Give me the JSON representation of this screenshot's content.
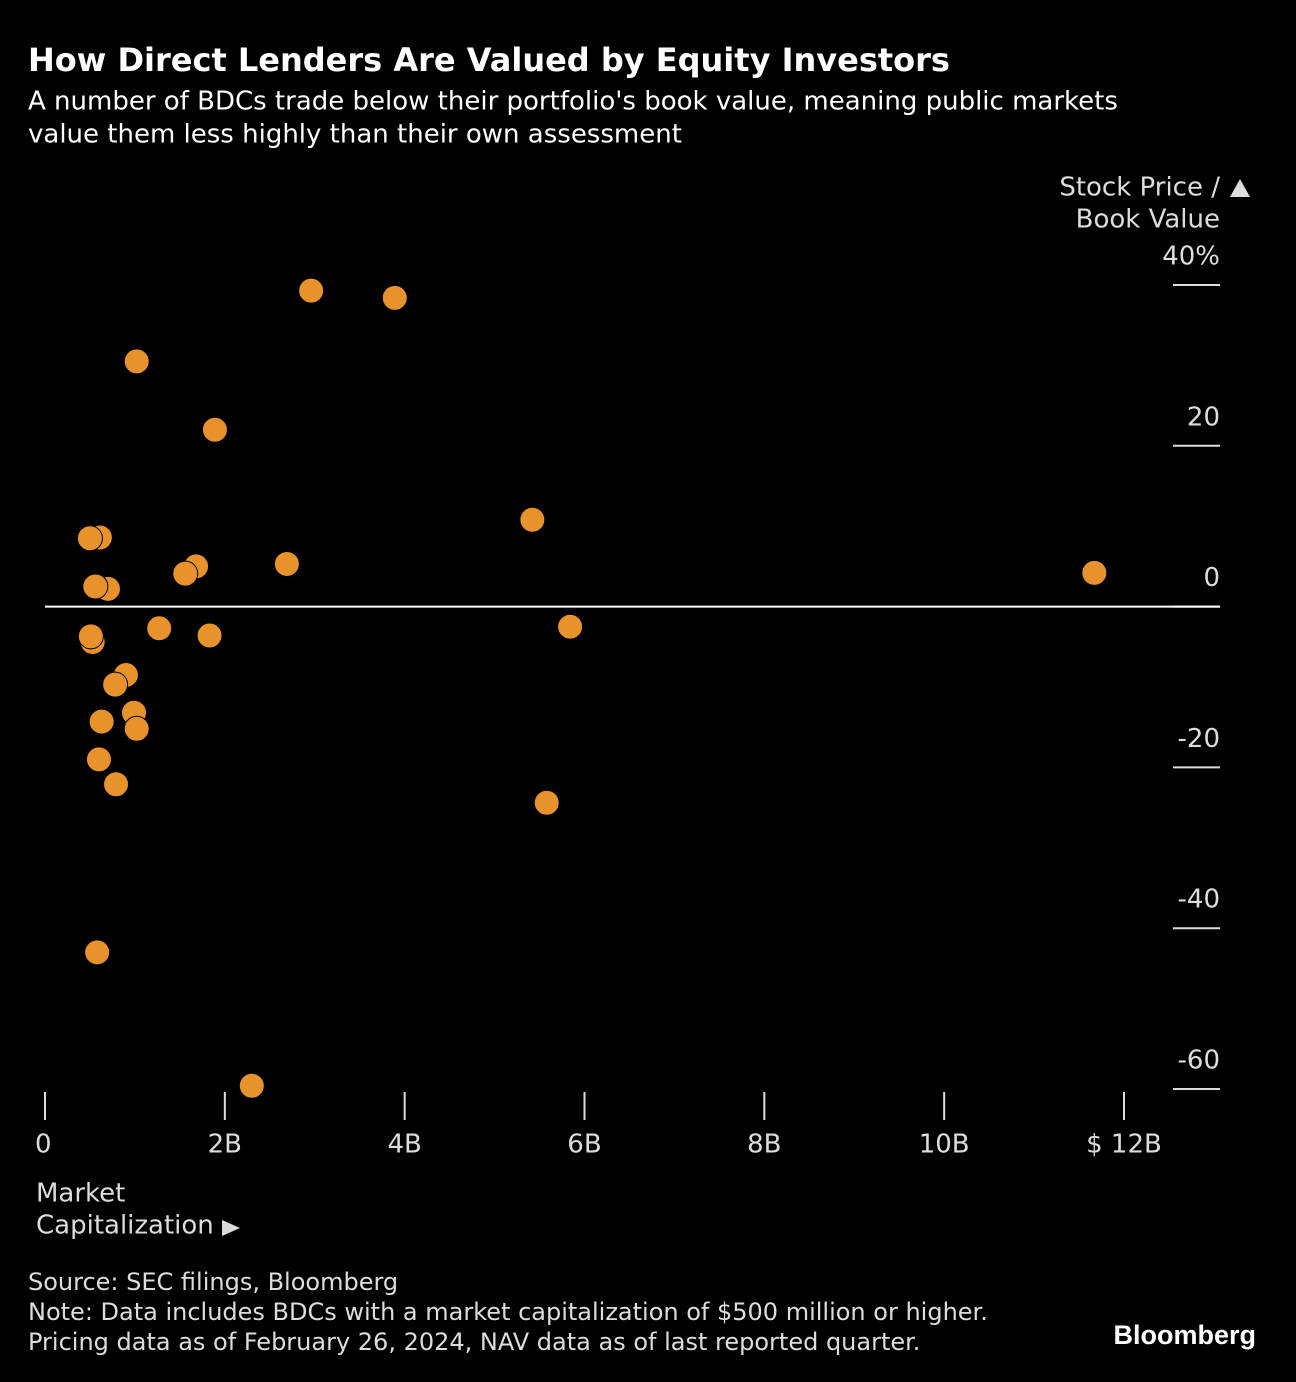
{
  "chart_data": {
    "type": "scatter",
    "title": "How Direct Lenders Are Valued by Equity Investors",
    "subtitle": [
      "A number of BDCs trade below their portfolio's book value, meaning public markets",
      "value them less highly than their own assessment"
    ],
    "y_label": [
      "Stock Price /",
      "Book Value"
    ],
    "x_label": [
      "Market",
      "Capitalization"
    ],
    "color": "#e8922c",
    "xlim": [
      0,
      12
    ],
    "xticks": [
      0,
      {
        "value": 2,
        "label": "2B"
      },
      {
        "value": 4,
        "label": "4B"
      },
      {
        "value": 6,
        "label": "6B"
      },
      {
        "value": 8,
        "label": "8B"
      },
      {
        "value": 10,
        "label": "10B"
      },
      {
        "value": 12,
        "label": "$ 12B"
      }
    ],
    "ylim": [
      -60,
      40
    ],
    "yticks": [
      {
        "value": 40,
        "label": "40%"
      },
      20,
      0,
      -20,
      -40,
      -60
    ],
    "x": [
      2.96,
      3.89,
      1.02,
      1.89,
      5.42,
      0.61,
      0.5,
      1.68,
      1.56,
      2.69,
      11.67,
      0.7,
      0.56,
      1.27,
      1.83,
      5.84,
      0.53,
      0.51,
      0.9,
      0.78,
      0.99,
      1.02,
      0.63,
      0.6,
      0.79,
      5.58,
      0.58,
      2.3
    ],
    "y": [
      39.3,
      38.4,
      30.5,
      22.0,
      10.8,
      8.6,
      8.5,
      5.0,
      4.1,
      5.3,
      4.2,
      2.2,
      2.5,
      -2.7,
      -3.6,
      -2.5,
      -4.4,
      -3.7,
      -8.5,
      -9.7,
      -13.2,
      -15.2,
      -14.3,
      -19.0,
      -22.1,
      -24.4,
      -43.0,
      -59.6
    ],
    "source": "Source: SEC filings, Bloomberg",
    "note": [
      "Note: Data includes BDCs with a market capitalization of $500 million or higher.",
      "Pricing data as of February 26, 2024, NAV data as of last reported quarter."
    ],
    "brand": "Bloomberg"
  }
}
